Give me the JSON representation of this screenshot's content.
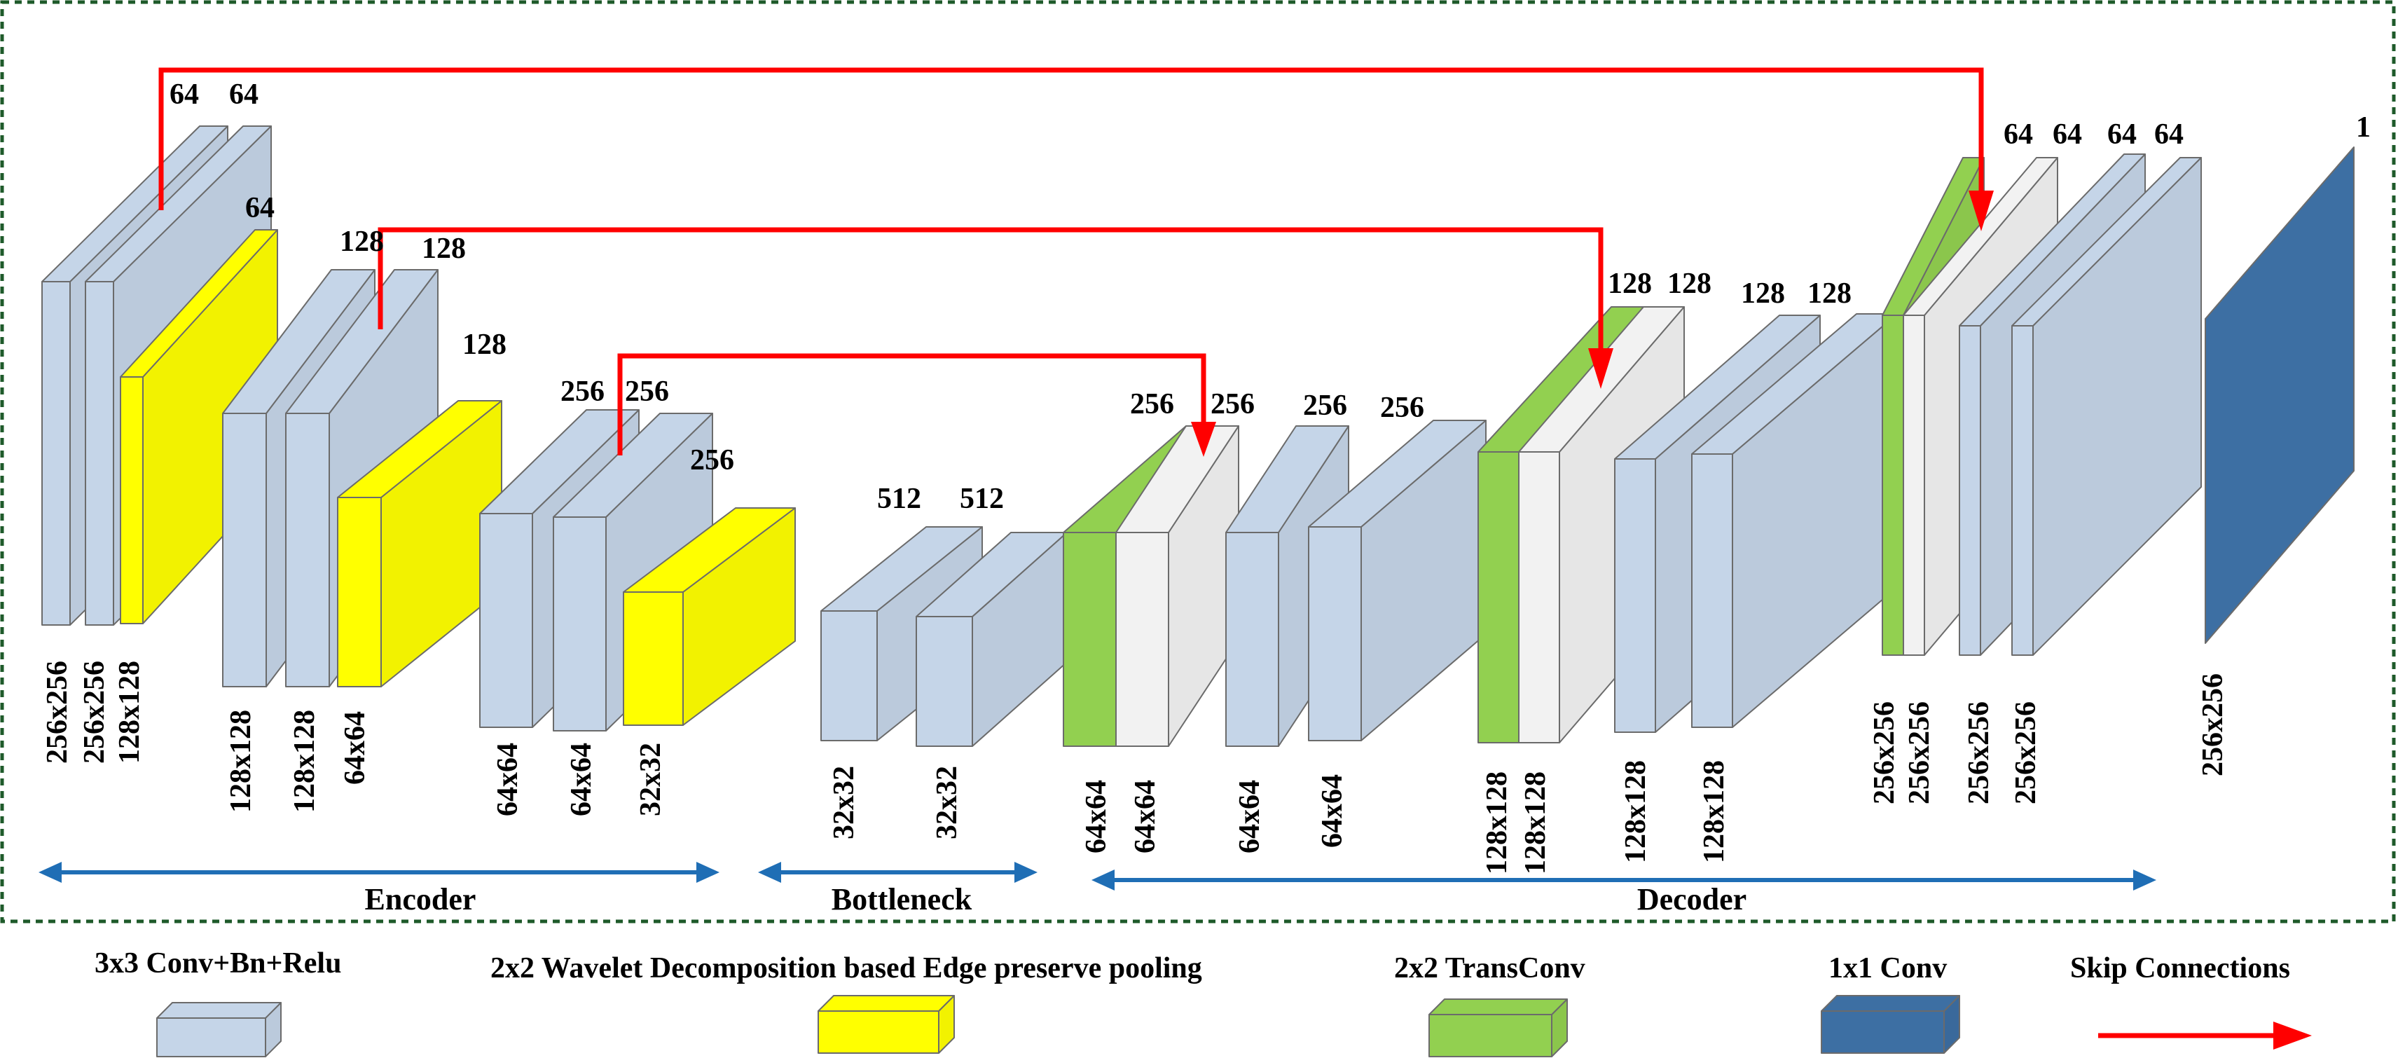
{
  "colors": {
    "conv": "#c5d5e8",
    "pool": "#ffff00",
    "transconv": "#92d050",
    "skip_concat": "#f2f2f2",
    "final_conv": "#3d6fa3",
    "skip_arrow": "#ff0000",
    "section_arrow": "#1f6eb5",
    "border": "#1e5a2a"
  },
  "icons": {
    "skip_arrow": "skip-arrow-icon",
    "section_arrow": "double-arrow-icon"
  },
  "encoder": {
    "block1": {
      "ch": [
        "64",
        "64",
        "64"
      ],
      "sz": [
        "256x256",
        "256x256",
        "128x128"
      ]
    },
    "block2": {
      "ch": [
        "128",
        "128",
        "128"
      ],
      "sz": [
        "128x128",
        "128x128",
        "64x64"
      ]
    },
    "block3": {
      "ch": [
        "256",
        "256",
        "256"
      ],
      "sz": [
        "64x64",
        "64x64",
        "32x32"
      ]
    }
  },
  "bottleneck": {
    "ch": [
      "512",
      "512"
    ],
    "sz": [
      "32x32",
      "32x32"
    ]
  },
  "decoder": {
    "block1": {
      "ch": [
        "256",
        "256",
        "256",
        "256"
      ],
      "sz": [
        "64x64",
        "64x64",
        "64x64",
        "64x64"
      ]
    },
    "block2": {
      "ch": [
        "128",
        "128",
        "128",
        "128"
      ],
      "sz": [
        "128x128",
        "128x128",
        "128x128",
        "128x128"
      ]
    },
    "block3": {
      "ch": [
        "64",
        "64",
        "64",
        "64"
      ],
      "sz": [
        "256x256",
        "256x256",
        "256x256",
        "256x256"
      ]
    }
  },
  "output": {
    "ch": "1",
    "sz": "256x256"
  },
  "sections": {
    "encoder": "Encoder",
    "bottleneck": "Bottleneck",
    "decoder": "Decoder"
  },
  "legend": {
    "conv": "3x3 Conv+Bn+Relu",
    "pool": "2x2 Wavelet Decomposition based Edge preserve pooling",
    "transconv": "2x2 TransConv",
    "final_conv": "1x1 Conv",
    "skip": "Skip Connections"
  }
}
